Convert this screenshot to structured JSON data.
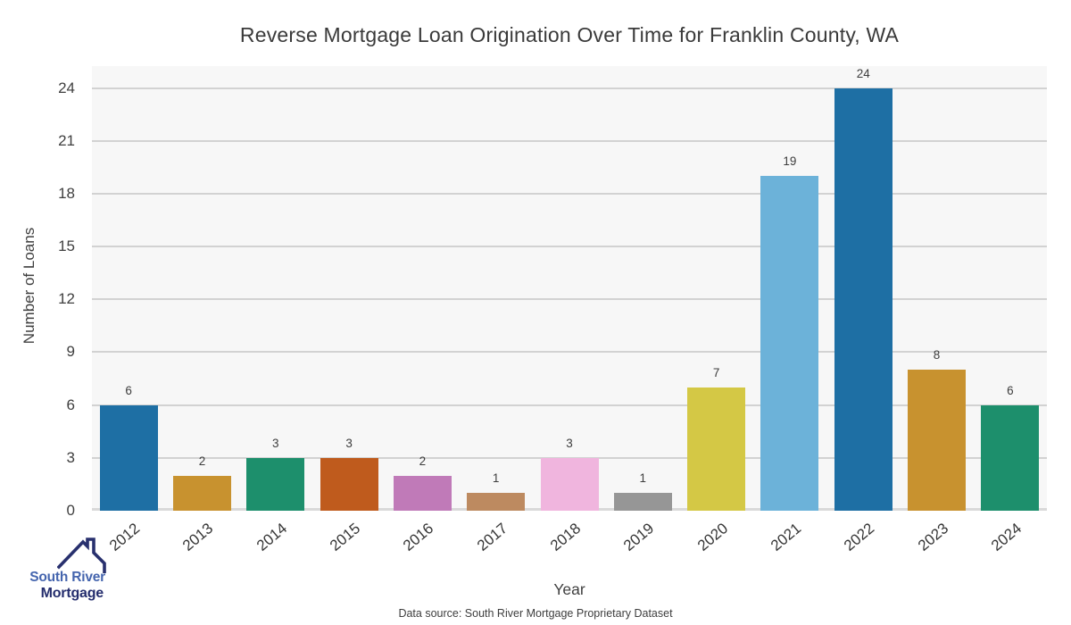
{
  "title": "Reverse Mortgage Loan Origination Over Time for Franklin County, WA",
  "axes": {
    "x_label": "Year",
    "y_label": "Number of Loans"
  },
  "footer": {
    "data_source": "Data source: South River Mortgage Proprietary Dataset"
  },
  "logo": {
    "name": "South River Mortgage",
    "line1": "South River",
    "line2": "Mortgage",
    "line1_color": "#4565ae",
    "line2_color": "#252e6e",
    "roof_icon_color": "#28306e"
  },
  "chart_data": {
    "type": "bar",
    "title": "Reverse Mortgage Loan Origination Over Time for Franklin County, WA",
    "categories": [
      "2012",
      "2013",
      "2014",
      "2015",
      "2016",
      "2017",
      "2018",
      "2019",
      "2020",
      "2021",
      "2022",
      "2023",
      "2024"
    ],
    "values": [
      6,
      2,
      3,
      3,
      2,
      1,
      3,
      1,
      7,
      19,
      24,
      8,
      6
    ],
    "bar_colors": [
      "#1e6fa4",
      "#c8922f",
      "#1d8f6c",
      "#bf5b1d",
      "#c07ab8",
      "#bd8a60",
      "#f0b5de",
      "#969696",
      "#d4c845",
      "#6cb2d9",
      "#1e6fa4",
      "#c8922f",
      "#1d8f6c"
    ],
    "xlabel": "Year",
    "ylabel": "Number of Loans",
    "yticks": [
      0,
      3,
      6,
      9,
      12,
      15,
      18,
      21,
      24
    ],
    "ylim": [
      0,
      25.25
    ],
    "grid": true,
    "legend": false,
    "plot_background": "#f7f7f7",
    "grid_color": "#d2d2d2",
    "value_label_color": "#3d3d3d"
  }
}
